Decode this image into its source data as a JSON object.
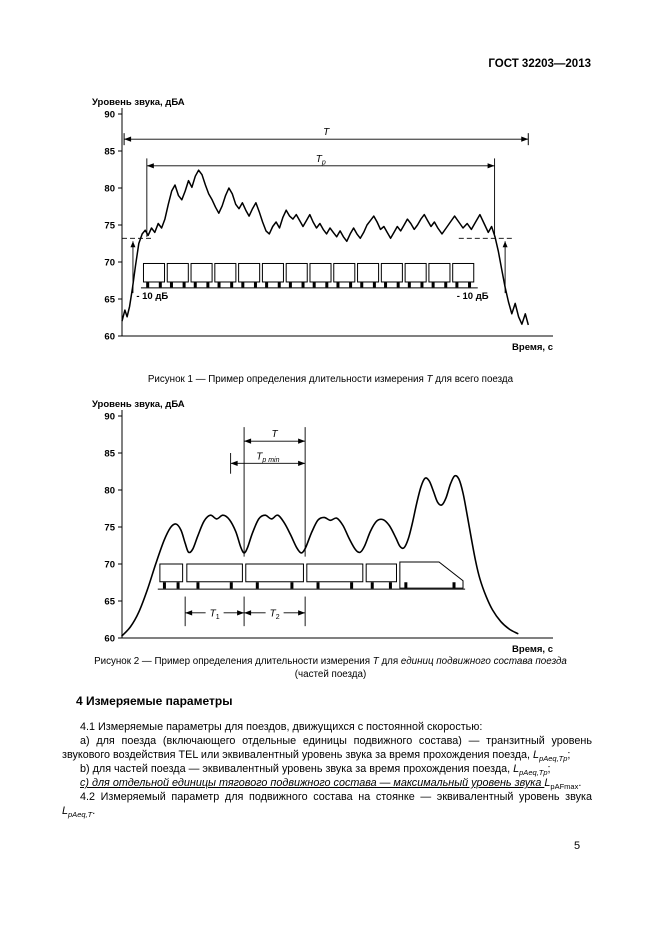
{
  "header": {
    "doc_code": "ГОСТ 32203—2013"
  },
  "page_number": "5",
  "chart_data": [
    {
      "id": "figure-1",
      "type": "line",
      "ylabel": "Уровень звука, дБА",
      "xlabel": "Время, с",
      "ylim": [
        60,
        90
      ],
      "yticks": [
        90,
        85,
        80,
        75,
        70,
        65,
        60
      ],
      "xlim": [
        0,
        100
      ],
      "smooth": false,
      "caption": [
        {
          "t": "Рисунок 1 — Пример определения длительности измерения "
        },
        {
          "t": "T",
          "i": true
        },
        {
          "t": " для всего поезда"
        }
      ],
      "points": [
        [
          0,
          62.0
        ],
        [
          0.7,
          63.5
        ],
        [
          1.2,
          62.6
        ],
        [
          1.8,
          64.0
        ],
        [
          2.5,
          66.5
        ],
        [
          3.2,
          69.5
        ],
        [
          4,
          72.5
        ],
        [
          4.8,
          73.8
        ],
        [
          5.5,
          74.3
        ],
        [
          6.2,
          73.6
        ],
        [
          7,
          74.6
        ],
        [
          7.8,
          74.0
        ],
        [
          8.6,
          75.2
        ],
        [
          9.4,
          74.6
        ],
        [
          10.2,
          75.8
        ],
        [
          11,
          77.8
        ],
        [
          11.8,
          79.6
        ],
        [
          12.6,
          80.4
        ],
        [
          13.4,
          79.0
        ],
        [
          14.2,
          78.4
        ],
        [
          15,
          79.6
        ],
        [
          15.8,
          81.0
        ],
        [
          16.6,
          80.1
        ],
        [
          17.4,
          81.6
        ],
        [
          18.2,
          82.4
        ],
        [
          19,
          81.8
        ],
        [
          19.8,
          80.4
        ],
        [
          20.6,
          79.2
        ],
        [
          21.4,
          78.4
        ],
        [
          22.2,
          77.4
        ],
        [
          23,
          76.6
        ],
        [
          23.8,
          77.6
        ],
        [
          24.6,
          79.0
        ],
        [
          25.4,
          80.0
        ],
        [
          26.2,
          79.2
        ],
        [
          27,
          77.8
        ],
        [
          27.8,
          77.2
        ],
        [
          28.6,
          78.0
        ],
        [
          29.4,
          77.0
        ],
        [
          30.2,
          76.2
        ],
        [
          31,
          77.2
        ],
        [
          31.8,
          78.0
        ],
        [
          32.6,
          76.8
        ],
        [
          33.4,
          75.4
        ],
        [
          34.2,
          74.2
        ],
        [
          35,
          73.8
        ],
        [
          35.8,
          74.8
        ],
        [
          36.6,
          75.4
        ],
        [
          37.4,
          74.6
        ],
        [
          38.2,
          76.0
        ],
        [
          39,
          77.0
        ],
        [
          39.8,
          76.2
        ],
        [
          40.6,
          75.8
        ],
        [
          41.4,
          76.4
        ],
        [
          42.2,
          75.6
        ],
        [
          43,
          74.8
        ],
        [
          43.8,
          75.6
        ],
        [
          44.6,
          76.4
        ],
        [
          45.4,
          75.4
        ],
        [
          46.2,
          74.6
        ],
        [
          47,
          75.2
        ],
        [
          47.8,
          74.4
        ],
        [
          48.6,
          73.8
        ],
        [
          49.4,
          74.6
        ],
        [
          50.2,
          74.0
        ],
        [
          51,
          73.4
        ],
        [
          51.8,
          74.2
        ],
        [
          52.6,
          73.4
        ],
        [
          53.4,
          72.8
        ],
        [
          54.2,
          73.8
        ],
        [
          55,
          74.6
        ],
        [
          55.8,
          73.8
        ],
        [
          56.6,
          73.2
        ],
        [
          57.4,
          74.0
        ],
        [
          58.2,
          75.0
        ],
        [
          59,
          75.6
        ],
        [
          59.8,
          76.2
        ],
        [
          60.6,
          75.4
        ],
        [
          61.4,
          74.4
        ],
        [
          62.2,
          74.8
        ],
        [
          63,
          74.0
        ],
        [
          63.8,
          73.2
        ],
        [
          64.6,
          74.0
        ],
        [
          65.4,
          74.8
        ],
        [
          66.2,
          74.2
        ],
        [
          67,
          75.0
        ],
        [
          67.8,
          75.8
        ],
        [
          68.6,
          75.2
        ],
        [
          69.4,
          74.4
        ],
        [
          70.2,
          75.0
        ],
        [
          71,
          75.8
        ],
        [
          71.8,
          76.4
        ],
        [
          72.6,
          75.6
        ],
        [
          73.4,
          74.8
        ],
        [
          74.2,
          75.4
        ],
        [
          75,
          74.6
        ],
        [
          76,
          73.8
        ],
        [
          77,
          74.6
        ],
        [
          78,
          75.4
        ],
        [
          79,
          76.2
        ],
        [
          80,
          75.4
        ],
        [
          81,
          74.6
        ],
        [
          82,
          75.2
        ],
        [
          83,
          74.4
        ],
        [
          84,
          75.4
        ],
        [
          85,
          76.4
        ],
        [
          86,
          75.2
        ],
        [
          87,
          74.0
        ],
        [
          87.8,
          74.8
        ],
        [
          88.6,
          73.4
        ],
        [
          89.4,
          71.4
        ],
        [
          90.2,
          69.0
        ],
        [
          91,
          66.6
        ],
        [
          91.8,
          64.6
        ],
        [
          92.6,
          63.0
        ],
        [
          93.4,
          64.4
        ],
        [
          94.2,
          62.6
        ],
        [
          95,
          61.6
        ],
        [
          95.8,
          63.0
        ],
        [
          96.5,
          61.5
        ]
      ],
      "annotations": [
        {
          "type": "dash",
          "x1": 0,
          "x2": 7.5,
          "y": 73.2
        },
        {
          "type": "dash",
          "x1": 80,
          "x2": 93,
          "y": 73.2
        },
        {
          "type": "vline",
          "x": 5.9,
          "y1": 84.0,
          "y2": 73.4
        },
        {
          "type": "vline",
          "x": 88.5,
          "y1": 84.0,
          "y2": 73.4
        },
        {
          "type": "varrow",
          "x": 2.6,
          "y1": 65.8,
          "y2": 72.8
        },
        {
          "type": "varrow",
          "x": 91,
          "y1": 65.8,
          "y2": 72.8
        },
        {
          "type": "harrow",
          "x1": 0.5,
          "x2": 96.5,
          "y": 86.6,
          "bars": true,
          "pos": "above",
          "label": [
            {
              "t": "T",
              "i": true
            }
          ]
        },
        {
          "type": "harrow",
          "x1": 5.9,
          "x2": 88.5,
          "y": 83.0,
          "bars": false,
          "pos": "above",
          "label": [
            {
              "t": "T",
              "i": true
            },
            {
              "t": "р",
              "i": true,
              "sub": true
            }
          ]
        },
        {
          "type": "text",
          "x": 3.4,
          "y": 65.0,
          "t": "- 10 дБ"
        },
        {
          "type": "text",
          "x": 79.5,
          "y": 65.0,
          "t": "- 10 дБ"
        }
      ],
      "train": {
        "rail": [
          4.5,
          84.5
        ],
        "rail_y": 66.5,
        "top": 69.8,
        "bottom": 67.3,
        "uniform": {
          "from": 5.1,
          "count": 14,
          "width": 5.0,
          "gap": 0.65
        }
      }
    },
    {
      "id": "figure-2",
      "type": "line",
      "ylabel": "Уровень звука, дБА",
      "xlabel": "Время, с",
      "ylim": [
        60,
        90
      ],
      "yticks": [
        90,
        85,
        80,
        75,
        70,
        65,
        60
      ],
      "xlim": [
        0,
        100
      ],
      "smooth": true,
      "caption": [
        {
          "t": "Рисунок 2 — Пример определения длительности измерения "
        },
        {
          "t": "T",
          "i": true
        },
        {
          "t": " для "
        },
        {
          "t": "единиц подвижного состава поезда",
          "i": true
        }
      ],
      "caption2": [
        {
          "t": "(частей поезда)"
        }
      ],
      "points": [
        [
          0,
          60.3
        ],
        [
          2,
          61.5
        ],
        [
          4,
          63.5
        ],
        [
          6,
          66.5
        ],
        [
          8,
          70.0
        ],
        [
          10,
          73.2
        ],
        [
          11.5,
          74.9
        ],
        [
          12.8,
          75.4
        ],
        [
          14,
          74.6
        ],
        [
          15,
          72.8
        ],
        [
          15.8,
          71.6
        ],
        [
          16.8,
          72.0
        ],
        [
          18,
          73.8
        ],
        [
          19.5,
          75.8
        ],
        [
          21,
          76.6
        ],
        [
          22.5,
          76.1
        ],
        [
          24,
          76.6
        ],
        [
          25.5,
          76.0
        ],
        [
          27,
          74.4
        ],
        [
          28.2,
          72.3
        ],
        [
          29,
          71.5
        ],
        [
          29.8,
          72.2
        ],
        [
          31,
          74.2
        ],
        [
          32.5,
          76.1
        ],
        [
          34,
          76.6
        ],
        [
          35.5,
          76.1
        ],
        [
          37,
          76.6
        ],
        [
          38.5,
          75.6
        ],
        [
          40,
          74.0
        ],
        [
          41.5,
          72.2
        ],
        [
          42.6,
          71.5
        ],
        [
          43.6,
          72.2
        ],
        [
          45,
          74.2
        ],
        [
          46.5,
          75.9
        ],
        [
          48,
          76.3
        ],
        [
          49.5,
          75.9
        ],
        [
          51,
          76.2
        ],
        [
          52.5,
          75.2
        ],
        [
          54,
          73.4
        ],
        [
          55.5,
          71.9
        ],
        [
          56.6,
          71.6
        ],
        [
          57.6,
          72.4
        ],
        [
          59,
          74.4
        ],
        [
          60.5,
          75.8
        ],
        [
          62,
          76.0
        ],
        [
          63.5,
          75.2
        ],
        [
          65,
          73.6
        ],
        [
          66,
          72.4
        ],
        [
          67,
          72.2
        ],
        [
          68,
          73.4
        ],
        [
          69,
          75.6
        ],
        [
          70,
          78.2
        ],
        [
          71,
          80.4
        ],
        [
          72,
          81.6
        ],
        [
          73,
          81.2
        ],
        [
          74,
          79.8
        ],
        [
          75,
          78.3
        ],
        [
          76,
          78.0
        ],
        [
          77,
          79.0
        ],
        [
          78,
          80.8
        ],
        [
          79,
          81.9
        ],
        [
          80,
          81.5
        ],
        [
          81,
          79.6
        ],
        [
          82,
          76.6
        ],
        [
          83,
          73.4
        ],
        [
          84,
          70.4
        ],
        [
          85,
          68.0
        ],
        [
          86.5,
          65.6
        ],
        [
          88,
          63.8
        ],
        [
          90,
          62.2
        ],
        [
          92,
          61.2
        ],
        [
          94,
          60.6
        ]
      ],
      "annotations": [
        {
          "type": "vline",
          "x": 29,
          "y1": 88.5,
          "y2": 71.0
        },
        {
          "type": "vline",
          "x": 43.5,
          "y1": 88.5,
          "y2": 71.0
        },
        {
          "type": "vline",
          "x": 25.8,
          "y1": 85.0,
          "y2": 82.2
        },
        {
          "type": "harrow",
          "x1": 29,
          "x2": 43.5,
          "y": 86.6,
          "bars": false,
          "pos": "above",
          "label": [
            {
              "t": "T",
              "i": true
            }
          ]
        },
        {
          "type": "harrow",
          "x1": 25.8,
          "x2": 43.5,
          "y": 83.6,
          "bars": false,
          "pos": "above",
          "label": [
            {
              "t": "T",
              "i": true
            },
            {
              "t": "р min",
              "i": true,
              "sub": true
            }
          ]
        },
        {
          "type": "harrow",
          "x1": 15,
          "x2": 29,
          "y": 63.4,
          "bars": false,
          "pos": "inline",
          "label": [
            {
              "t": "T",
              "i": true
            },
            {
              "t": "1",
              "sub": true
            }
          ]
        },
        {
          "type": "harrow",
          "x1": 29,
          "x2": 43.5,
          "y": 63.4,
          "bars": false,
          "pos": "inline",
          "label": [
            {
              "t": "T",
              "i": true
            },
            {
              "t": "2",
              "sub": true
            }
          ]
        },
        {
          "type": "vline",
          "x": 15,
          "y1": 65.6,
          "y2": 61.6
        },
        {
          "type": "vline",
          "x": 29,
          "y1": 65.6,
          "y2": 61.6
        },
        {
          "type": "vline",
          "x": 43.5,
          "y1": 65.6,
          "y2": 61.6
        }
      ],
      "train": {
        "rail": [
          8.5,
          81.5
        ],
        "rail_y": 66.6,
        "top": 70.0,
        "bottom": 67.6,
        "spans": [
          [
            9,
            14.4
          ],
          [
            15.4,
            28.6
          ],
          [
            29.4,
            43.1
          ],
          [
            43.9,
            57.2
          ],
          [
            58,
            65.2
          ]
        ],
        "loco": [
          66,
          81
        ]
      }
    }
  ],
  "section": {
    "heading": "4 Измеряемые параметры",
    "paragraphs": [
      {
        "indent": true,
        "segs": [
          {
            "t": "4.1 Измеряемые параметры для поездов, движущихся с постоянной скоростью:"
          }
        ]
      },
      {
        "indent": true,
        "segs": [
          {
            "t": "а) для поезда (включающего отдельные единицы подвижного состава) — транзитный уровень звукового воздействия TEL или эквивалентный уровень звука за время прохождения поезда, "
          },
          {
            "t": "L",
            "i": true
          },
          {
            "t": "pAeq,Tр",
            "i": true,
            "sub": true
          },
          {
            "t": ";"
          }
        ]
      },
      {
        "indent": true,
        "segs": [
          {
            "t": "b) для частей поезда — эквивалентный уровень звука за время прохождения поезда, "
          },
          {
            "t": "L",
            "i": true
          },
          {
            "t": "pAeq,Tр",
            "i": true,
            "sub": true
          },
          {
            "t": ";"
          }
        ]
      },
      {
        "indent": true,
        "segs": [
          {
            "t": "с) для отдельной единицы тягового подвижного состава — максимальный уровень звука ",
            "i": true,
            "u": true
          },
          {
            "t": "L",
            "i": true
          },
          {
            "t": "pAFmax",
            "sub": true
          },
          {
            "t": "."
          }
        ]
      },
      {
        "indent": true,
        "segs": [
          {
            "t": "4.2 Измеряемый параметр для подвижного состава на стоянке — эквивалентный уровень звука "
          },
          {
            "t": "L",
            "i": true
          },
          {
            "t": "pAeq,T",
            "i": true,
            "sub": true
          },
          {
            "t": "."
          }
        ]
      }
    ]
  }
}
